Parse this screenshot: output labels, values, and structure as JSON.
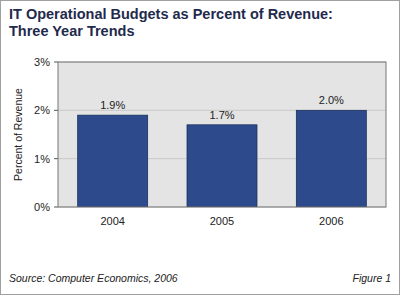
{
  "chart_data": {
    "type": "bar",
    "title": [
      "IT Operational Budgets as Percent of Revenue:",
      "Three Year Trends"
    ],
    "y_label": "Percent of Revenue",
    "categories": [
      "2004",
      "2005",
      "2006"
    ],
    "values": [
      1.9,
      1.7,
      2.0
    ],
    "value_labels": [
      "1.9%",
      "1.7%",
      "2.0%"
    ],
    "data_labels": true,
    "color": "#2d4b8c",
    "ylim": [
      0,
      3
    ],
    "yticks": [
      {
        "value": 0,
        "label": "0%"
      },
      {
        "value": 1,
        "label": "1%"
      },
      {
        "value": 2,
        "label": "2%"
      },
      {
        "value": 3,
        "label": "3%"
      }
    ],
    "grid": true,
    "source": "Source: Computer Economics, 2006",
    "caption": "Figure 1"
  }
}
